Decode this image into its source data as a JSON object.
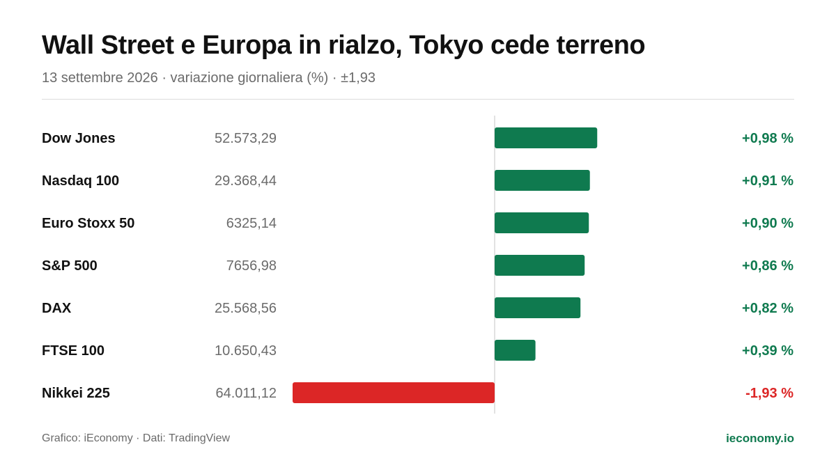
{
  "header": {
    "title": "Wall Street e Europa in rialzo, Tokyo cede terreno",
    "subtitle": "13 settembre 2026 · variazione giornaliera (%) · ±1,93"
  },
  "footer": {
    "source": "Grafico: iEconomy · Dati: TradingView",
    "brand": "ieconomy.io"
  },
  "colors": {
    "positive": "#0f7a4f",
    "negative": "#dc2626",
    "name_text": "#111111",
    "value_text": "#6b6b6b",
    "axis": "#d9d9d9"
  },
  "chart_data": {
    "type": "bar",
    "orientation": "horizontal",
    "categories": [
      "Dow Jones",
      "Nasdaq 100",
      "Euro Stoxx 50",
      "S&P 500",
      "DAX",
      "FTSE 100",
      "Nikkei 225"
    ],
    "levels": [
      "52.573,29",
      "29.368,44",
      "6325,14",
      "7656,98",
      "25.568,56",
      "10.650,43",
      "64.011,12"
    ],
    "values": [
      0.98,
      0.91,
      0.9,
      0.86,
      0.82,
      0.39,
      -1.93
    ],
    "value_labels": [
      "+0,98 %",
      "+0,91 %",
      "+0,90 %",
      "+0,86 %",
      "+0,82 %",
      "+0,39 %",
      "-1,93 %"
    ],
    "xlim": [
      -1.93,
      1.93
    ],
    "grid": false,
    "legend": "none"
  }
}
